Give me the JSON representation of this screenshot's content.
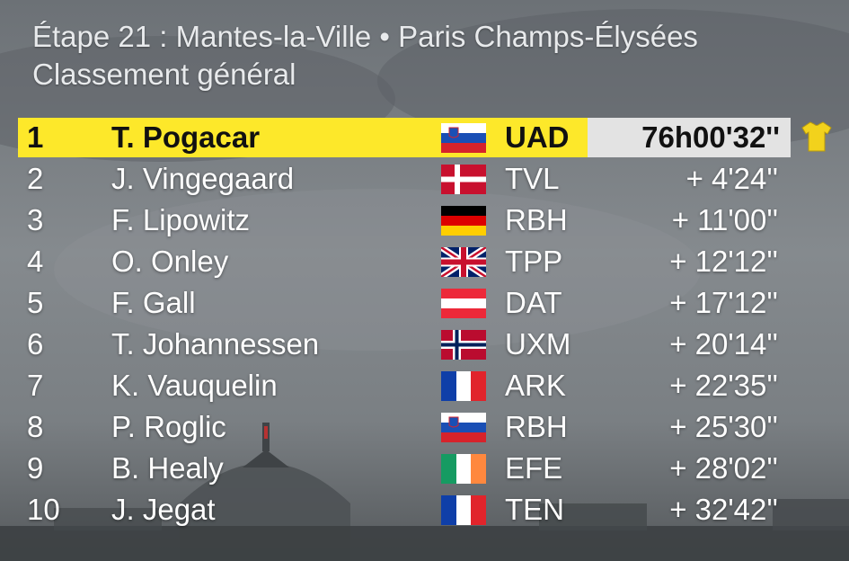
{
  "header": {
    "title": "Étape 21 : Mantes-la-Ville • Paris Champs-Élysées",
    "subtitle": "Classement général"
  },
  "colors": {
    "leader_bar": "#fde82a",
    "leader_time_bg": "#e3e3e3",
    "jersey": "#f2d21c"
  },
  "leader_icon": "yellow-jersey-icon",
  "rows": [
    {
      "rank": "1",
      "name": "T. Pogacar",
      "flag": "slovenia",
      "team": "UAD",
      "gap": "76h00'32''"
    },
    {
      "rank": "2",
      "name": "J. Vingegaard",
      "flag": "denmark",
      "team": "TVL",
      "gap": "+  4'24''"
    },
    {
      "rank": "3",
      "name": "F. Lipowitz",
      "flag": "germany",
      "team": "RBH",
      "gap": "+  11'00''"
    },
    {
      "rank": "4",
      "name": "O. Onley",
      "flag": "united-kingdom",
      "team": "TPP",
      "gap": "+  12'12''"
    },
    {
      "rank": "5",
      "name": "F. Gall",
      "flag": "austria",
      "team": "DAT",
      "gap": "+  17'12''"
    },
    {
      "rank": "6",
      "name": "T. Johannessen",
      "flag": "norway",
      "team": "UXM",
      "gap": "+  20'14''"
    },
    {
      "rank": "7",
      "name": "K. Vauquelin",
      "flag": "france",
      "team": "ARK",
      "gap": "+  22'35''"
    },
    {
      "rank": "8",
      "name": "P. Roglic",
      "flag": "slovenia",
      "team": "RBH",
      "gap": "+  25'30''"
    },
    {
      "rank": "9",
      "name": "B. Healy",
      "flag": "ireland",
      "team": "EFE",
      "gap": "+  28'02''"
    },
    {
      "rank": "10",
      "name": "J. Jegat",
      "flag": "france",
      "team": "TEN",
      "gap": "+  32'42''"
    }
  ]
}
